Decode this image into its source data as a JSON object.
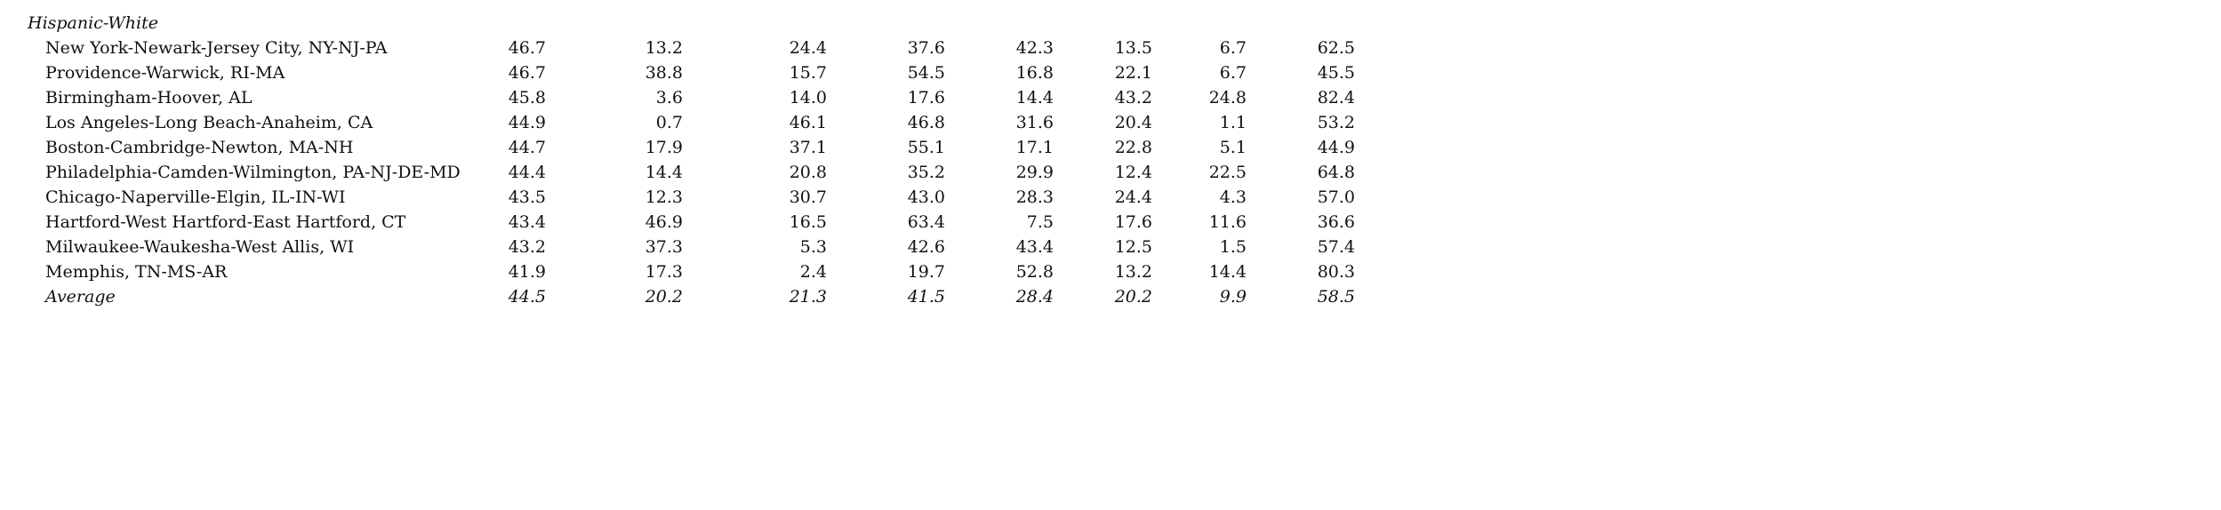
{
  "section": {
    "title": "Hispanic-White"
  },
  "rows": [
    {
      "label": "New York-Newark-Jersey City, NY-NJ-PA",
      "values": [
        "46.7",
        "13.2",
        "24.4",
        "37.6",
        "42.3",
        "13.5",
        "6.7",
        "62.5"
      ]
    },
    {
      "label": "Providence-Warwick, RI-MA",
      "values": [
        "46.7",
        "38.8",
        "15.7",
        "54.5",
        "16.8",
        "22.1",
        "6.7",
        "45.5"
      ]
    },
    {
      "label": "Birmingham-Hoover, AL",
      "values": [
        "45.8",
        "3.6",
        "14.0",
        "17.6",
        "14.4",
        "43.2",
        "24.8",
        "82.4"
      ]
    },
    {
      "label": "Los Angeles-Long Beach-Anaheim, CA",
      "values": [
        "44.9",
        "0.7",
        "46.1",
        "46.8",
        "31.6",
        "20.4",
        "1.1",
        "53.2"
      ]
    },
    {
      "label": "Boston-Cambridge-Newton, MA-NH",
      "values": [
        "44.7",
        "17.9",
        "37.1",
        "55.1",
        "17.1",
        "22.8",
        "5.1",
        "44.9"
      ]
    },
    {
      "label": "Philadelphia-Camden-Wilmington, PA-NJ-DE-MD",
      "values": [
        "44.4",
        "14.4",
        "20.8",
        "35.2",
        "29.9",
        "12.4",
        "22.5",
        "64.8"
      ]
    },
    {
      "label": "Chicago-Naperville-Elgin, IL-IN-WI",
      "values": [
        "43.5",
        "12.3",
        "30.7",
        "43.0",
        "28.3",
        "24.4",
        "4.3",
        "57.0"
      ]
    },
    {
      "label": "Hartford-West Hartford-East Hartford, CT",
      "values": [
        "43.4",
        "46.9",
        "16.5",
        "63.4",
        "7.5",
        "17.6",
        "11.6",
        "36.6"
      ]
    },
    {
      "label": "Milwaukee-Waukesha-West Allis, WI",
      "values": [
        "43.2",
        "37.3",
        "5.3",
        "42.6",
        "43.4",
        "12.5",
        "1.5",
        "57.4"
      ]
    },
    {
      "label": "Memphis, TN-MS-AR",
      "values": [
        "41.9",
        "17.3",
        "2.4",
        "19.7",
        "52.8",
        "13.2",
        "14.4",
        "80.3"
      ]
    },
    {
      "label": "Average",
      "values": [
        "44.5",
        "20.2",
        "21.3",
        "41.5",
        "28.4",
        "20.2",
        "9.9",
        "58.5"
      ]
    }
  ]
}
